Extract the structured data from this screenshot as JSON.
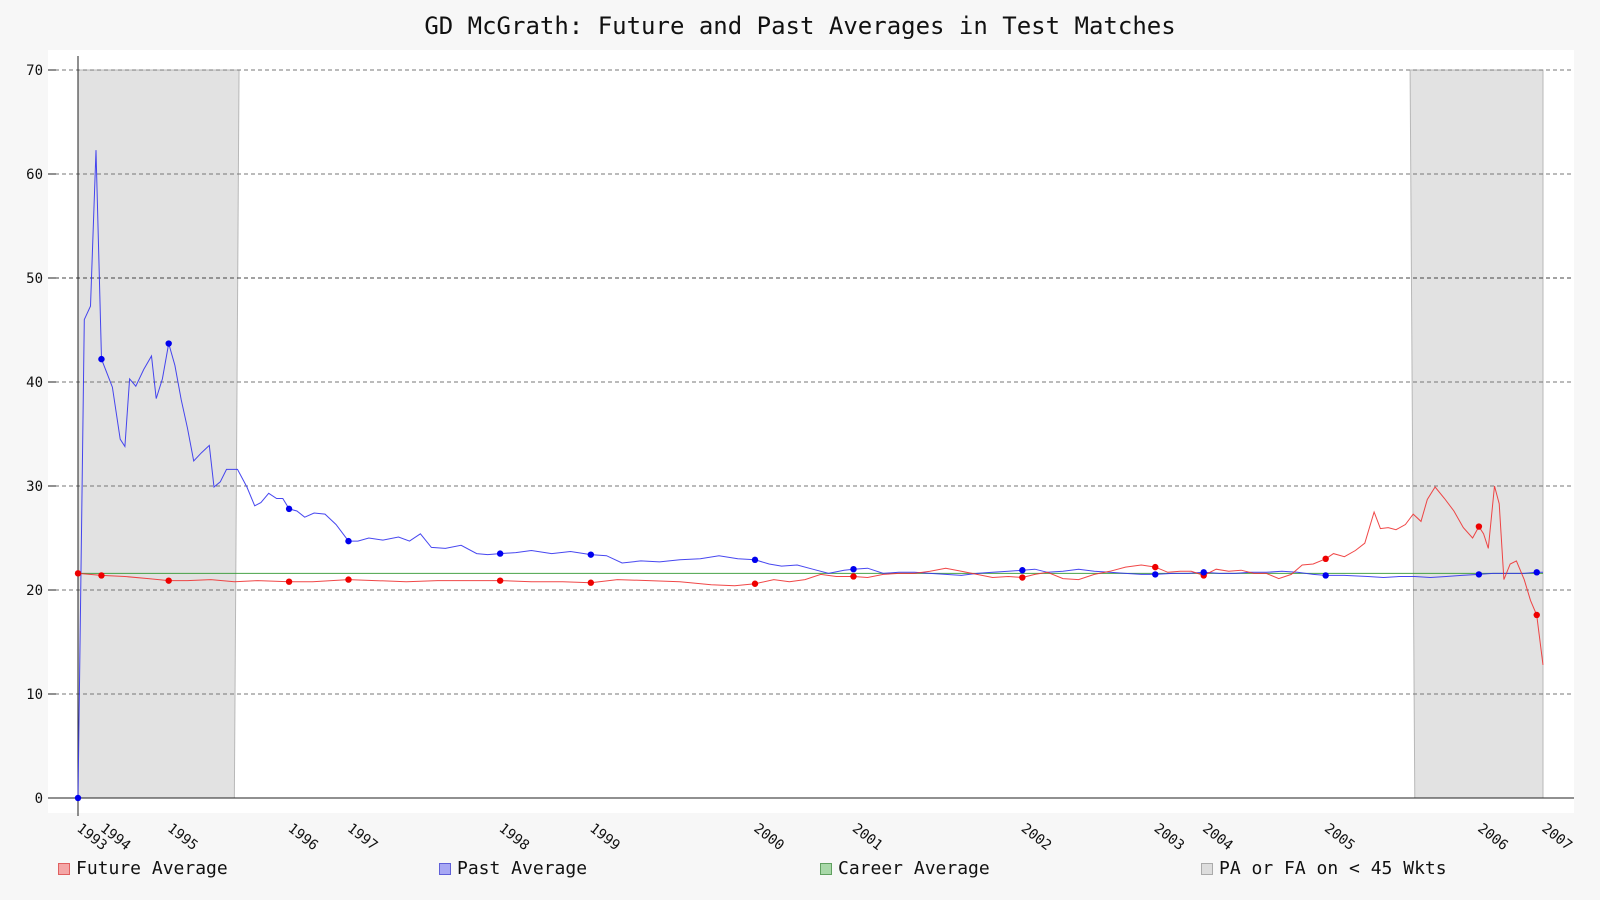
{
  "chart_data": {
    "type": "line",
    "title": "GD McGrath: Future and Past Averages in Test Matches",
    "xlabel": "",
    "ylabel": "",
    "ylim": [
      0,
      70
    ],
    "yticks": [
      0,
      10,
      20,
      30,
      40,
      50,
      60,
      70
    ],
    "grid": true,
    "legend_position": "bottom",
    "x_tick_labels": [
      "1993",
      "1994",
      "1995",
      "1996",
      "1997",
      "1998",
      "1999",
      "2000",
      "2001",
      "2002",
      "2003",
      "2004",
      "2005",
      "2006",
      "2007"
    ],
    "x_tick_positions": [
      0,
      1.5,
      5.8,
      13.5,
      17.3,
      27,
      32.8,
      43.3,
      49.6,
      60.4,
      68.9,
      72,
      79.8,
      89.6,
      93.7
    ],
    "career_average": 21.6,
    "shaded_regions": [
      {
        "name": "PA or FA on < 45 Wkts",
        "from": 0,
        "to": 10,
        "top_from": 0,
        "top_to": 10.3
      },
      {
        "name": "PA or FA on < 45 Wkts",
        "from": 85.5,
        "to": 93.7,
        "top_from": 85.2,
        "top_to": 93.7
      }
    ],
    "series": [
      {
        "name": "Future Average",
        "color": "#ee3333",
        "points": [
          [
            0,
            21.6
          ],
          [
            1.5,
            21.4
          ],
          [
            3,
            21.3
          ],
          [
            4.5,
            21.1
          ],
          [
            5.8,
            20.9
          ],
          [
            7,
            20.9
          ],
          [
            8.5,
            21.0
          ],
          [
            10,
            20.8
          ],
          [
            11.5,
            20.9
          ],
          [
            13.5,
            20.8
          ],
          [
            15,
            20.8
          ],
          [
            17.3,
            21.0
          ],
          [
            19,
            20.9
          ],
          [
            21,
            20.8
          ],
          [
            23,
            20.9
          ],
          [
            25,
            20.9
          ],
          [
            27,
            20.9
          ],
          [
            29,
            20.8
          ],
          [
            31,
            20.8
          ],
          [
            32.8,
            20.7
          ],
          [
            34.5,
            21.0
          ],
          [
            36.5,
            20.9
          ],
          [
            38.5,
            20.8
          ],
          [
            40.5,
            20.5
          ],
          [
            42,
            20.4
          ],
          [
            43.3,
            20.6
          ],
          [
            44.5,
            21.0
          ],
          [
            45.5,
            20.8
          ],
          [
            46.5,
            21.0
          ],
          [
            47.5,
            21.5
          ],
          [
            48.5,
            21.3
          ],
          [
            49.6,
            21.3
          ],
          [
            50.5,
            21.2
          ],
          [
            51.5,
            21.5
          ],
          [
            52.5,
            21.6
          ],
          [
            53.5,
            21.6
          ],
          [
            54.5,
            21.8
          ],
          [
            55.5,
            22.1
          ],
          [
            56.5,
            21.8
          ],
          [
            57.5,
            21.5
          ],
          [
            58.5,
            21.2
          ],
          [
            59.5,
            21.3
          ],
          [
            60.4,
            21.2
          ],
          [
            61.2,
            21.5
          ],
          [
            62,
            21.7
          ],
          [
            63,
            21.1
          ],
          [
            64,
            21.0
          ],
          [
            65,
            21.5
          ],
          [
            66,
            21.8
          ],
          [
            67,
            22.2
          ],
          [
            68,
            22.4
          ],
          [
            68.9,
            22.2
          ],
          [
            69.7,
            21.7
          ],
          [
            70.5,
            21.8
          ],
          [
            71.2,
            21.8
          ],
          [
            72,
            21.4
          ],
          [
            72.8,
            22.0
          ],
          [
            73.6,
            21.8
          ],
          [
            74.4,
            21.9
          ],
          [
            75.2,
            21.6
          ],
          [
            76,
            21.6
          ],
          [
            76.8,
            21.1
          ],
          [
            77.6,
            21.5
          ],
          [
            78.3,
            22.4
          ],
          [
            79,
            22.5
          ],
          [
            79.8,
            23.0
          ],
          [
            80.3,
            23.5
          ],
          [
            81,
            23.2
          ],
          [
            81.7,
            23.8
          ],
          [
            82.3,
            24.5
          ],
          [
            82.9,
            27.5
          ],
          [
            83.3,
            25.9
          ],
          [
            83.8,
            26.0
          ],
          [
            84.3,
            25.8
          ],
          [
            84.9,
            26.3
          ],
          [
            85.4,
            27.3
          ],
          [
            85.9,
            26.6
          ],
          [
            86.3,
            28.7
          ],
          [
            86.8,
            29.9
          ],
          [
            87.4,
            28.8
          ],
          [
            88,
            27.6
          ],
          [
            88.6,
            26.0
          ],
          [
            89.2,
            25.0
          ],
          [
            89.6,
            26.1
          ],
          [
            89.9,
            25.4
          ],
          [
            90.2,
            24.0
          ],
          [
            90.6,
            30.0
          ],
          [
            90.9,
            28.3
          ],
          [
            91.2,
            21.0
          ],
          [
            91.6,
            22.5
          ],
          [
            92.0,
            22.8
          ],
          [
            92.5,
            21.0
          ],
          [
            92.9,
            19.0
          ],
          [
            93.3,
            17.6
          ],
          [
            93.7,
            12.8
          ]
        ],
        "markers": [
          [
            0,
            21.6
          ],
          [
            1.5,
            21.4
          ],
          [
            5.8,
            20.9
          ],
          [
            13.5,
            20.8
          ],
          [
            17.3,
            21.0
          ],
          [
            27,
            20.9
          ],
          [
            32.8,
            20.7
          ],
          [
            43.3,
            20.6
          ],
          [
            49.6,
            21.3
          ],
          [
            60.4,
            21.2
          ],
          [
            68.9,
            22.2
          ],
          [
            72,
            21.4
          ],
          [
            79.8,
            23.0
          ],
          [
            89.6,
            26.1
          ],
          [
            93.3,
            17.6
          ]
        ]
      },
      {
        "name": "Past Average",
        "color": "#3333ee",
        "points": [
          [
            0,
            0
          ],
          [
            0.4,
            46
          ],
          [
            0.8,
            47.3
          ],
          [
            1.15,
            62.3
          ],
          [
            1.5,
            42.2
          ],
          [
            2.2,
            39.5
          ],
          [
            2.7,
            34.5
          ],
          [
            3,
            33.8
          ],
          [
            3.3,
            40.3
          ],
          [
            3.7,
            39.6
          ],
          [
            4.2,
            41.2
          ],
          [
            4.7,
            42.5
          ],
          [
            5,
            38.4
          ],
          [
            5.4,
            40.3
          ],
          [
            5.8,
            43.7
          ],
          [
            6.2,
            41.6
          ],
          [
            6.6,
            38.3
          ],
          [
            7,
            35.6
          ],
          [
            7.4,
            32.4
          ],
          [
            7.9,
            33.2
          ],
          [
            8.4,
            33.9
          ],
          [
            8.7,
            29.9
          ],
          [
            9.1,
            30.4
          ],
          [
            9.5,
            31.6
          ],
          [
            10.2,
            31.6
          ],
          [
            10.8,
            29.9
          ],
          [
            11.3,
            28.1
          ],
          [
            11.7,
            28.4
          ],
          [
            12.2,
            29.3
          ],
          [
            12.7,
            28.8
          ],
          [
            13.1,
            28.8
          ],
          [
            13.5,
            27.8
          ],
          [
            14,
            27.6
          ],
          [
            14.5,
            27.0
          ],
          [
            15.1,
            27.4
          ],
          [
            15.8,
            27.3
          ],
          [
            16.5,
            26.3
          ],
          [
            17.3,
            24.7
          ],
          [
            17.9,
            24.7
          ],
          [
            18.6,
            25.0
          ],
          [
            19.5,
            24.8
          ],
          [
            20.5,
            25.1
          ],
          [
            21.2,
            24.7
          ],
          [
            21.9,
            25.4
          ],
          [
            22.6,
            24.1
          ],
          [
            23.5,
            24.0
          ],
          [
            24.5,
            24.3
          ],
          [
            25.5,
            23.5
          ],
          [
            26.2,
            23.4
          ],
          [
            27,
            23.5
          ],
          [
            28,
            23.6
          ],
          [
            29,
            23.8
          ],
          [
            30.3,
            23.5
          ],
          [
            31.5,
            23.7
          ],
          [
            32.8,
            23.4
          ],
          [
            33.8,
            23.3
          ],
          [
            34.8,
            22.6
          ],
          [
            36,
            22.8
          ],
          [
            37.2,
            22.7
          ],
          [
            38.5,
            22.9
          ],
          [
            39.8,
            23.0
          ],
          [
            41,
            23.3
          ],
          [
            42.2,
            23.0
          ],
          [
            43.3,
            22.9
          ],
          [
            44.2,
            22.5
          ],
          [
            45,
            22.3
          ],
          [
            46,
            22.4
          ],
          [
            47,
            22.0
          ],
          [
            48,
            21.6
          ],
          [
            49,
            21.9
          ],
          [
            49.6,
            22.0
          ],
          [
            50.5,
            22.1
          ],
          [
            51.5,
            21.6
          ],
          [
            52.5,
            21.7
          ],
          [
            53.5,
            21.7
          ],
          [
            54.5,
            21.6
          ],
          [
            55.5,
            21.5
          ],
          [
            56.5,
            21.4
          ],
          [
            57.5,
            21.6
          ],
          [
            58.5,
            21.7
          ],
          [
            59.5,
            21.8
          ],
          [
            60.4,
            21.9
          ],
          [
            61.2,
            22.0
          ],
          [
            62,
            21.7
          ],
          [
            63,
            21.8
          ],
          [
            64,
            22.0
          ],
          [
            65,
            21.8
          ],
          [
            66,
            21.7
          ],
          [
            67,
            21.6
          ],
          [
            68,
            21.5
          ],
          [
            68.9,
            21.5
          ],
          [
            70,
            21.6
          ],
          [
            71,
            21.6
          ],
          [
            72,
            21.7
          ],
          [
            73,
            21.6
          ],
          [
            74,
            21.6
          ],
          [
            75,
            21.7
          ],
          [
            76,
            21.7
          ],
          [
            77,
            21.8
          ],
          [
            78,
            21.7
          ],
          [
            79,
            21.5
          ],
          [
            79.8,
            21.4
          ],
          [
            81,
            21.4
          ],
          [
            82.5,
            21.3
          ],
          [
            83.5,
            21.2
          ],
          [
            84.5,
            21.3
          ],
          [
            85.5,
            21.3
          ],
          [
            86.5,
            21.2
          ],
          [
            87.5,
            21.3
          ],
          [
            88.5,
            21.4
          ],
          [
            89.6,
            21.5
          ],
          [
            90.5,
            21.6
          ],
          [
            91.5,
            21.6
          ],
          [
            92.5,
            21.6
          ],
          [
            93.3,
            21.7
          ],
          [
            93.7,
            21.7
          ]
        ],
        "markers": [
          [
            0,
            0
          ],
          [
            1.5,
            42.2
          ],
          [
            5.8,
            43.7
          ],
          [
            13.5,
            27.8
          ],
          [
            17.3,
            24.7
          ],
          [
            27,
            23.5
          ],
          [
            32.8,
            23.4
          ],
          [
            43.3,
            22.9
          ],
          [
            49.6,
            22.0
          ],
          [
            60.4,
            21.9
          ],
          [
            68.9,
            21.5
          ],
          [
            72,
            21.7
          ],
          [
            79.8,
            21.4
          ],
          [
            89.6,
            21.5
          ],
          [
            93.3,
            21.7
          ]
        ]
      },
      {
        "name": "Career Average",
        "color": "#339933",
        "points": [
          [
            0,
            21.6
          ],
          [
            93.7,
            21.6
          ]
        ]
      }
    ],
    "legend": [
      {
        "name": "Future Average",
        "fill": "#f4a6a6",
        "stroke": "#e06060"
      },
      {
        "name": "Past Average",
        "fill": "#a8a8f4",
        "stroke": "#6060d8"
      },
      {
        "name": "Career Average",
        "fill": "#a8d8a8",
        "stroke": "#60a060"
      },
      {
        "name": "PA or FA on < 45 Wkts",
        "fill": "#dddddd",
        "stroke": "#aaaaaa"
      }
    ]
  }
}
